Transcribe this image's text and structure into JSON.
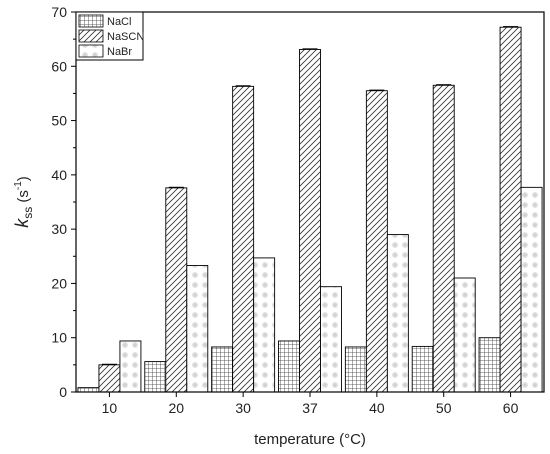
{
  "chart_data": {
    "type": "bar",
    "categories": [
      "10",
      "20",
      "30",
      "37",
      "40",
      "50",
      "60"
    ],
    "series": [
      {
        "name": "NaCl",
        "values": [
          0.8,
          5.6,
          8.3,
          9.4,
          8.3,
          8.4,
          10.0
        ]
      },
      {
        "name": "NaSCN",
        "values": [
          5.0,
          37.6,
          56.3,
          63.1,
          55.5,
          56.5,
          67.2
        ]
      },
      {
        "name": "NaBr",
        "values": [
          9.4,
          23.3,
          24.7,
          19.4,
          29.0,
          21.0,
          37.7
        ]
      }
    ],
    "xlabel": "temperature (°C)",
    "ylabel": {
      "base": "k",
      "sub": "ss",
      "unit_open": " (s",
      "sup": "-1",
      "unit_close": ")"
    },
    "ylim": [
      0,
      70
    ],
    "yticks": [
      0,
      10,
      20,
      30,
      40,
      50,
      60,
      70
    ],
    "legend_position": "top-left",
    "grid": false,
    "error_bars": "small, on NaSCN bars"
  }
}
